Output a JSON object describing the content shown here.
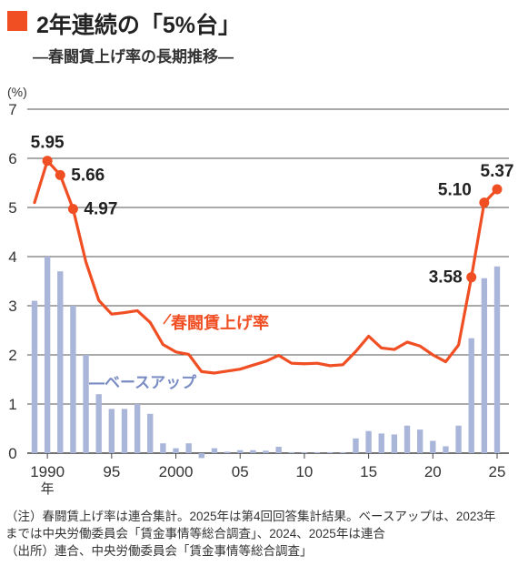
{
  "title": "2年連続の「5%台」",
  "subtitle": "―春闘賃上げ率の長期推移―",
  "colors": {
    "accent": "#f04e23",
    "bars": "#a9b5d9",
    "series_label_bars": "#7a8cc4",
    "grid": "#555555"
  },
  "chart_data": {
    "type": "bar+line",
    "y_unit_label": "(%)",
    "ylim": [
      0,
      7
    ],
    "y_ticks": [
      0,
      1,
      2,
      3,
      4,
      5,
      6,
      7
    ],
    "x_tick_labels": [
      {
        "year": 1990,
        "label": "1990"
      },
      {
        "year": 1995,
        "label": "95"
      },
      {
        "year": 2000,
        "label": "2000"
      },
      {
        "year": 2005,
        "label": "05"
      },
      {
        "year": 2010,
        "label": "10"
      },
      {
        "year": 2015,
        "label": "15"
      },
      {
        "year": 2020,
        "label": "20"
      },
      {
        "year": 2025,
        "label": "25"
      }
    ],
    "x_sub_label": "年",
    "years": [
      1989,
      1990,
      1991,
      1992,
      1993,
      1994,
      1995,
      1996,
      1997,
      1998,
      1999,
      2000,
      2001,
      2002,
      2003,
      2004,
      2005,
      2006,
      2007,
      2008,
      2009,
      2010,
      2011,
      2012,
      2013,
      2014,
      2015,
      2016,
      2017,
      2018,
      2019,
      2020,
      2021,
      2022,
      2023,
      2024,
      2025
    ],
    "series": [
      {
        "name": "ベースアップ",
        "kind": "bar",
        "values": [
          3.1,
          4.0,
          3.7,
          3.0,
          2.0,
          1.2,
          0.9,
          0.9,
          1.0,
          0.8,
          0.2,
          0.1,
          0.2,
          -0.1,
          0.1,
          0.03,
          0.06,
          0.06,
          0.05,
          0.13,
          0.02,
          0.02,
          0.02,
          0.02,
          0.02,
          0.3,
          0.45,
          0.4,
          0.38,
          0.56,
          0.48,
          0.25,
          0.14,
          0.56,
          2.34,
          3.56,
          3.8
        ]
      },
      {
        "name": "春闘賃上げ率",
        "kind": "line",
        "values": [
          5.1,
          5.95,
          5.66,
          4.97,
          3.89,
          3.11,
          2.83,
          2.86,
          2.9,
          2.66,
          2.21,
          2.06,
          2.01,
          1.66,
          1.63,
          1.67,
          1.71,
          1.79,
          1.87,
          1.99,
          1.83,
          1.82,
          1.83,
          1.78,
          1.8,
          2.07,
          2.38,
          2.14,
          2.11,
          2.26,
          2.18,
          2.0,
          1.86,
          2.2,
          3.58,
          5.1,
          5.37
        ]
      }
    ],
    "annotations": [
      {
        "year": 1990,
        "value": 5.95,
        "label": "5.95"
      },
      {
        "year": 1991,
        "value": 5.66,
        "label": "5.66"
      },
      {
        "year": 1992,
        "value": 4.97,
        "label": "4.97"
      },
      {
        "year": 2023,
        "value": 3.58,
        "label": "3.58"
      },
      {
        "year": 2024,
        "value": 5.1,
        "label": "5.10"
      },
      {
        "year": 2025,
        "value": 5.37,
        "label": "5.37"
      }
    ]
  },
  "notes": [
    "（注）春闘賃上げ率は連合集計。2025年は第4回回答集計結果。ベースアップは、2023年",
    "までは中央労働委員会「賃金事情等総合調査」、2024、2025年は連合",
    "（出所）連合、中央労働委員会「賃金事情等総合調査」"
  ]
}
